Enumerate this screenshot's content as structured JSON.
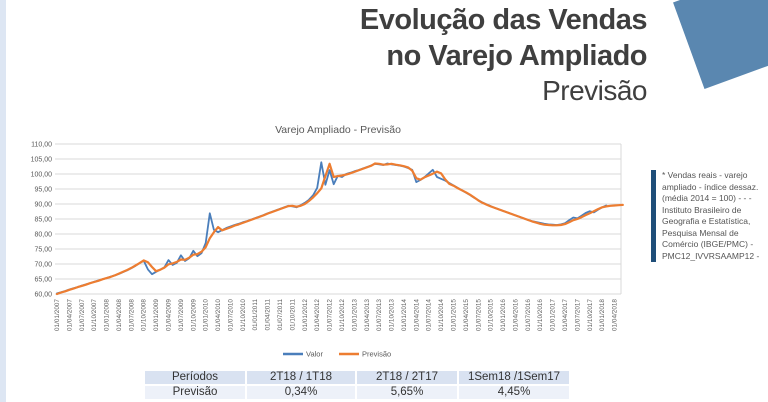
{
  "header": {
    "title_line1": "Evolução das Vendas",
    "title_line2": "no Varejo Ampliado",
    "subtitle": "Previsão",
    "accent_square_color": "#5a87b0"
  },
  "chart_data": {
    "type": "line",
    "title": "Varejo  Ampliado - Previsão",
    "ylim": [
      60,
      110
    ],
    "y_step": 5,
    "y_tick_format": "comma-decimal",
    "grid": "horizontal",
    "legend_position": "bottom",
    "x_start": "01/01/2007",
    "x_frequency": "monthly",
    "months_per_tick": 3,
    "x_tick_labels": [
      "01/01/2007",
      "01/04/2007",
      "01/07/2007",
      "01/10/2007",
      "01/01/2008",
      "01/04/2008",
      "01/07/2008",
      "01/10/2008",
      "01/01/2009",
      "01/04/2009",
      "01/07/2009",
      "01/10/2009",
      "01/01/2010",
      "01/04/2010",
      "01/07/2010",
      "01/10/2010",
      "01/01/2011",
      "01/04/2011",
      "01/07/2011",
      "01/10/2011",
      "01/01/2012",
      "01/04/2012",
      "01/07/2012",
      "01/10/2012",
      "01/01/2013",
      "01/04/2013",
      "01/07/2013",
      "01/10/2013",
      "01/01/2014",
      "01/04/2014",
      "01/07/2014",
      "01/10/2014",
      "01/01/2015",
      "01/04/2015",
      "01/07/2015",
      "01/10/2015",
      "01/01/2016",
      "01/04/2016",
      "01/07/2016",
      "01/10/2016",
      "01/01/2017",
      "01/04/2017",
      "01/07/2017",
      "01/10/2017",
      "01/01/2018",
      "01/04/2018"
    ],
    "series": [
      {
        "name": "Valor",
        "color": "#4a7ebb",
        "values": [
          60.2,
          60.6,
          61.0,
          61.5,
          61.9,
          62.3,
          62.8,
          63.2,
          63.6,
          64.1,
          64.5,
          64.9,
          65.3,
          65.8,
          66.2,
          66.7,
          67.3,
          67.9,
          68.6,
          69.4,
          70.3,
          71.1,
          68.2,
          66.6,
          67.4,
          68.1,
          68.9,
          71.3,
          69.7,
          70.4,
          72.9,
          71.0,
          71.9,
          74.4,
          72.6,
          73.6,
          77.0,
          86.9,
          81.4,
          80.6,
          81.3,
          82.0,
          82.5,
          83.0,
          83.4,
          83.9,
          84.3,
          84.8,
          85.3,
          85.8,
          86.3,
          86.9,
          87.4,
          87.9,
          88.4,
          88.9,
          89.4,
          89.2,
          88.9,
          89.6,
          90.4,
          91.4,
          92.9,
          95.4,
          103.9,
          96.4,
          101.3,
          96.6,
          99.4,
          99.0,
          100.0,
          100.4,
          100.9,
          101.3,
          101.8,
          102.3,
          102.8,
          103.4,
          103.2,
          103.0,
          103.5,
          103.2,
          103.0,
          102.8,
          102.5,
          102.0,
          101.4,
          97.3,
          98.0,
          99.0,
          100.2,
          101.4,
          99.0,
          98.4,
          97.8,
          97.0,
          96.2,
          95.4,
          94.6,
          93.8,
          93.0,
          92.1,
          91.3,
          90.5,
          89.9,
          89.3,
          88.7,
          88.2,
          87.7,
          87.2,
          86.7,
          86.2,
          85.7,
          85.2,
          84.7,
          84.3,
          84.0,
          83.7,
          83.4,
          83.2,
          83.1,
          83.0,
          83.2,
          83.6,
          84.6,
          85.5,
          85.2,
          86.1,
          87.0,
          87.6,
          87.2,
          88.1,
          88.9,
          89.5
        ]
      },
      {
        "name": "Previsão",
        "color": "#ed7d31",
        "values": [
          60.0,
          60.5,
          60.9,
          61.4,
          61.8,
          62.3,
          62.7,
          63.1,
          63.6,
          64.0,
          64.4,
          64.9,
          65.3,
          65.7,
          66.2,
          66.8,
          67.4,
          68.0,
          68.7,
          69.5,
          70.3,
          71.2,
          70.6,
          69.0,
          67.6,
          68.1,
          68.8,
          69.9,
          70.2,
          70.7,
          71.5,
          71.4,
          72.1,
          73.1,
          73.3,
          74.1,
          75.6,
          78.6,
          80.6,
          82.3,
          81.2,
          81.7,
          82.2,
          82.8,
          83.2,
          83.7,
          84.2,
          84.7,
          85.2,
          85.7,
          86.2,
          86.8,
          87.3,
          87.8,
          88.3,
          88.8,
          89.3,
          89.4,
          89.1,
          89.4,
          90.0,
          91.0,
          92.2,
          93.6,
          95.2,
          99.3,
          103.4,
          99.0,
          99.3,
          99.5,
          99.8,
          100.2,
          100.7,
          101.2,
          101.7,
          102.2,
          102.7,
          103.5,
          103.4,
          103.1,
          103.2,
          103.4,
          103.1,
          102.9,
          102.6,
          102.2,
          101.1,
          98.6,
          98.1,
          98.9,
          99.5,
          100.1,
          100.8,
          100.2,
          98.2,
          96.7,
          96.1,
          95.3,
          94.6,
          93.9,
          93.1,
          92.2,
          91.2,
          90.4,
          89.8,
          89.2,
          88.7,
          88.2,
          87.7,
          87.2,
          86.7,
          86.2,
          85.7,
          85.2,
          84.7,
          84.2,
          83.8,
          83.4,
          83.1,
          83.0,
          82.9,
          82.9,
          83.0,
          83.3,
          83.9,
          84.6,
          85.0,
          85.6,
          86.3,
          86.9,
          87.6,
          88.3,
          88.9,
          89.2,
          89.4,
          89.5,
          89.6,
          89.7
        ]
      }
    ]
  },
  "note": {
    "text": "* Vendas reais - varejo ampliado - índice dessaz. (média 2014 = 100) - - - Instituto Brasileiro de Geografia e Estatística, Pesquisa Mensal de Comércio (IBGE/PMC) - PMC12_IVVRSAAMP12 -",
    "bar_color": "#1f4e79"
  },
  "table": {
    "header": [
      "Períodos",
      "2T18 / 1T18",
      "2T18 / 2T17",
      "1Sem18 /1Sem17"
    ],
    "row": [
      "Previsão",
      "0,34%",
      "5,65%",
      "4,45%"
    ],
    "header_bg": "#d9e2f1",
    "row_bg": "#edf1f9"
  }
}
